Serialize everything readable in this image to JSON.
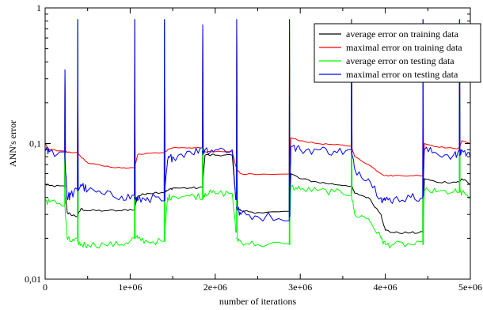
{
  "chart_data": {
    "type": "line",
    "title": "",
    "xlabel": "number of iterations",
    "ylabel": "ANN's error",
    "xlim": [
      0,
      5000000
    ],
    "ylim": [
      0.01,
      1
    ],
    "yscale": "log",
    "grid": false,
    "legend_position": "top-right",
    "x_ticks": [
      {
        "value": 0,
        "label": "0"
      },
      {
        "value": 1000000,
        "label": "1e+06"
      },
      {
        "value": 2000000,
        "label": "2e+06"
      },
      {
        "value": 3000000,
        "label": "3e+06"
      },
      {
        "value": 4000000,
        "label": "4e+06"
      },
      {
        "value": 5000000,
        "label": "5e+06"
      }
    ],
    "y_ticks": [
      {
        "value": 0.01,
        "label": "0,01"
      },
      {
        "value": 0.1,
        "label": "0,1"
      },
      {
        "value": 1,
        "label": "1"
      }
    ],
    "series": [
      {
        "name": "average error on training data",
        "color": "#000000",
        "x": [
          0,
          50000,
          230000,
          260000,
          300000,
          380000,
          420000,
          500000,
          700000,
          900000,
          1050000,
          1090000,
          1200000,
          1400000,
          1440000,
          1500000,
          1700000,
          1850000,
          1880000,
          2000000,
          2200000,
          2250000,
          2300000,
          2500000,
          2870000,
          2890000,
          3000000,
          3200000,
          3400000,
          3600000,
          3640000,
          3800000,
          3950000,
          4000000,
          4100000,
          4300000,
          4440000,
          4460000,
          4600000,
          4800000,
          4870000,
          4900000,
          5000000
        ],
        "y": [
          0.05,
          0.049,
          0.048,
          0.031,
          0.03,
          0.029,
          0.033,
          0.032,
          0.032,
          0.032,
          0.033,
          0.041,
          0.043,
          0.044,
          0.045,
          0.047,
          0.047,
          0.047,
          0.082,
          0.082,
          0.082,
          0.034,
          0.032,
          0.031,
          0.031,
          0.06,
          0.055,
          0.052,
          0.05,
          0.049,
          0.043,
          0.04,
          0.03,
          0.023,
          0.022,
          0.022,
          0.022,
          0.055,
          0.052,
          0.052,
          0.052,
          0.055,
          0.05
        ]
      },
      {
        "name": "maximal error on training data",
        "color": "#ff0000",
        "x": [
          0,
          50000,
          230000,
          260000,
          380000,
          420000,
          500000,
          700000,
          900000,
          1050000,
          1090000,
          1200000,
          1400000,
          1440000,
          1500000,
          1700000,
          1850000,
          1880000,
          2000000,
          2200000,
          2250000,
          2300000,
          2500000,
          2870000,
          2890000,
          3000000,
          3200000,
          3400000,
          3600000,
          3640000,
          3800000,
          3950000,
          4000000,
          4100000,
          4300000,
          4440000,
          4460000,
          4600000,
          4800000,
          4870000,
          4900000,
          5000000
        ],
        "y": [
          0.1,
          0.09,
          0.088,
          0.086,
          0.085,
          0.08,
          0.072,
          0.068,
          0.066,
          0.066,
          0.083,
          0.085,
          0.086,
          0.09,
          0.093,
          0.093,
          0.093,
          0.087,
          0.087,
          0.087,
          0.065,
          0.06,
          0.059,
          0.059,
          0.11,
          0.105,
          0.1,
          0.098,
          0.096,
          0.08,
          0.07,
          0.06,
          0.058,
          0.058,
          0.058,
          0.058,
          0.1,
          0.095,
          0.092,
          0.092,
          0.105,
          0.1
        ]
      },
      {
        "name": "average error on testing data",
        "color": "#00ff00",
        "x": [
          0,
          50000,
          230000,
          260000,
          300000,
          380000,
          420000,
          500000,
          700000,
          900000,
          1050000,
          1090000,
          1200000,
          1400000,
          1440000,
          1500000,
          1700000,
          1850000,
          1880000,
          2000000,
          2200000,
          2250000,
          2300000,
          2500000,
          2870000,
          2890000,
          3000000,
          3200000,
          3400000,
          3600000,
          3640000,
          3800000,
          3950000,
          4000000,
          4100000,
          4300000,
          4440000,
          4460000,
          4600000,
          4800000,
          4870000,
          4900000,
          5000000
        ],
        "y": [
          0.038,
          0.037,
          0.036,
          0.02,
          0.019,
          0.019,
          0.018,
          0.018,
          0.018,
          0.018,
          0.02,
          0.02,
          0.019,
          0.019,
          0.04,
          0.041,
          0.041,
          0.041,
          0.043,
          0.043,
          0.043,
          0.02,
          0.019,
          0.018,
          0.018,
          0.048,
          0.046,
          0.045,
          0.044,
          0.043,
          0.03,
          0.028,
          0.02,
          0.018,
          0.018,
          0.018,
          0.018,
          0.045,
          0.044,
          0.044,
          0.044,
          0.043,
          0.041
        ]
      },
      {
        "name": "maximal error on testing data",
        "color": "#0000ff",
        "x": [
          0,
          50000,
          230000,
          260000,
          300000,
          380000,
          420000,
          500000,
          700000,
          900000,
          1050000,
          1090000,
          1200000,
          1400000,
          1440000,
          1500000,
          1700000,
          1850000,
          1880000,
          2000000,
          2200000,
          2250000,
          2300000,
          2500000,
          2870000,
          2890000,
          3000000,
          3200000,
          3400000,
          3600000,
          3640000,
          3800000,
          3950000,
          4000000,
          4100000,
          4300000,
          4440000,
          4460000,
          4600000,
          4800000,
          4870000,
          4900000,
          5000000
        ],
        "y": [
          0.088,
          0.087,
          0.085,
          0.04,
          0.042,
          0.045,
          0.05,
          0.045,
          0.042,
          0.041,
          0.04,
          0.038,
          0.04,
          0.038,
          0.075,
          0.08,
          0.088,
          0.088,
          0.09,
          0.09,
          0.09,
          0.034,
          0.03,
          0.029,
          0.029,
          0.095,
          0.09,
          0.09,
          0.088,
          0.087,
          0.065,
          0.055,
          0.04,
          0.038,
          0.039,
          0.04,
          0.041,
          0.09,
          0.085,
          0.082,
          0.082,
          0.09,
          0.08
        ]
      }
    ],
    "spikes": {
      "x": [
        230000,
        380000,
        1050000,
        1400000,
        1850000,
        2250000,
        2870000,
        3600000,
        4440000,
        4870000
      ],
      "y": [
        0.35,
        0.82,
        0.82,
        0.82,
        0.75,
        0.82,
        0.82,
        0.82,
        0.82,
        0.82
      ]
    }
  }
}
